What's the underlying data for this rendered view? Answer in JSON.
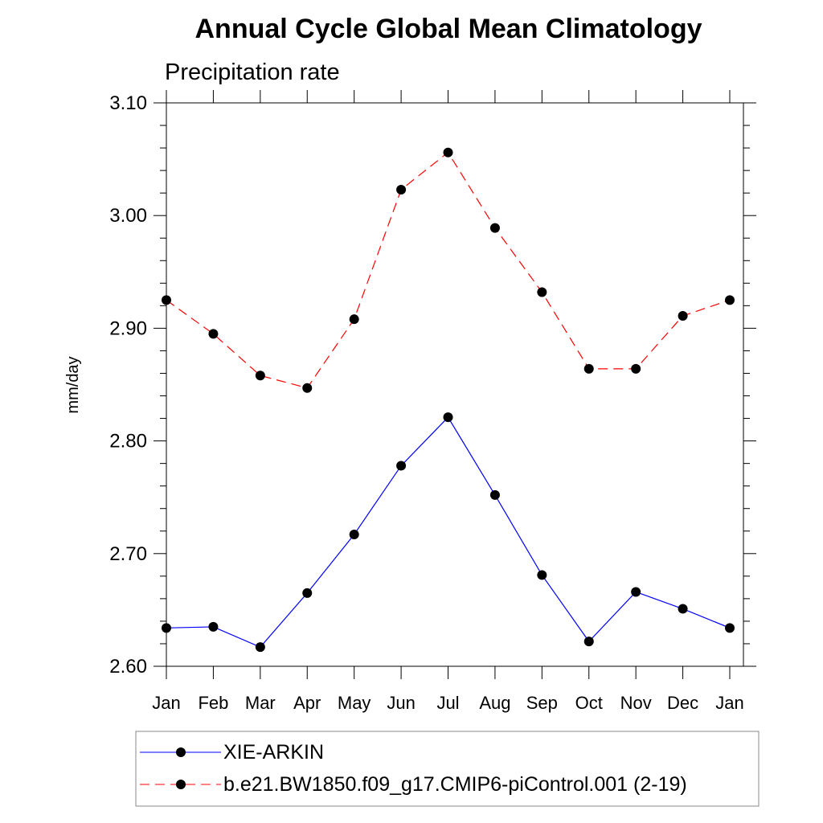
{
  "chart_data": {
    "type": "line",
    "title": "Annual Cycle Global Mean Climatology",
    "subtitle": "Precipitation rate",
    "xlabel": "",
    "ylabel": "mm/day",
    "categories": [
      "Jan",
      "Feb",
      "Mar",
      "Apr",
      "May",
      "Jun",
      "Jul",
      "Aug",
      "Sep",
      "Oct",
      "Nov",
      "Dec",
      "Jan"
    ],
    "ylim": [
      2.6,
      3.1
    ],
    "yticks": [
      "2.60",
      "2.70",
      "2.80",
      "2.90",
      "3.00",
      "3.10"
    ],
    "legend_position": "bottom",
    "series": [
      {
        "name": "XIE-ARKIN",
        "color": "#0000ff",
        "dash": "solid",
        "values": [
          2.634,
          2.635,
          2.617,
          2.665,
          2.717,
          2.778,
          2.821,
          2.752,
          2.681,
          2.622,
          2.666,
          2.651,
          2.634
        ]
      },
      {
        "name": "b.e21.BW1850.f09_g17.CMIP6-piControl.001 (2-19)",
        "color": "#ff0000",
        "dash": "dashed",
        "values": [
          2.925,
          2.895,
          2.858,
          2.847,
          2.908,
          3.023,
          3.056,
          2.989,
          2.932,
          2.864,
          2.864,
          2.911,
          2.925
        ]
      }
    ]
  }
}
